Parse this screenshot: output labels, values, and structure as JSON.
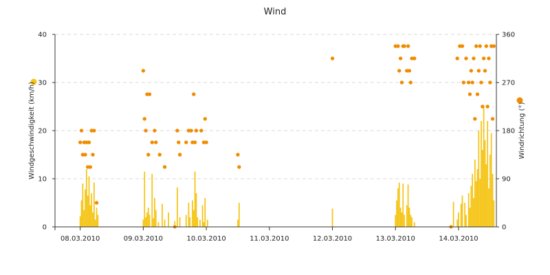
{
  "chart_data": {
    "type": "bar+scatter",
    "title": "Wind",
    "x_tick_labels": [
      "08.03.2010",
      "09.03.2010",
      "10.03.2010",
      "11.03.2010",
      "12.03.2010",
      "13.03.2010",
      "14.03.2010"
    ],
    "x_range_days": [
      7.6,
      14.6
    ],
    "y_left": {
      "label": "Windgeschwindigkeit (km/h)",
      "min": 0,
      "max": 40,
      "ticks": [
        0,
        10,
        20,
        30,
        40
      ]
    },
    "y_right": {
      "label": "Windrichtung (°)",
      "min": 0,
      "max": 360,
      "ticks": [
        0,
        90,
        180,
        270,
        360
      ]
    },
    "series": [
      {
        "name": "Windgeschwindigkeit",
        "kind": "bar",
        "axis": "left",
        "color": "#f5c518",
        "points": [
          [
            8.0,
            2.2
          ],
          [
            8.02,
            5.5
          ],
          [
            8.04,
            9.0
          ],
          [
            8.06,
            3.5
          ],
          [
            8.08,
            7.8
          ],
          [
            8.1,
            12.0
          ],
          [
            8.12,
            6.5
          ],
          [
            8.14,
            10.5
          ],
          [
            8.16,
            4.5
          ],
          [
            8.18,
            7.0
          ],
          [
            8.2,
            3.0
          ],
          [
            8.22,
            9.2
          ],
          [
            8.24,
            1.5
          ],
          [
            8.26,
            4.0
          ],
          [
            8.28,
            2.5
          ],
          [
            9.0,
            1.5
          ],
          [
            9.02,
            11.5
          ],
          [
            9.04,
            2.0
          ],
          [
            9.06,
            3.0
          ],
          [
            9.08,
            4.0
          ],
          [
            9.1,
            2.5
          ],
          [
            9.14,
            11.0
          ],
          [
            9.16,
            1.8
          ],
          [
            9.18,
            6.0
          ],
          [
            9.2,
            3.5
          ],
          [
            9.24,
            1.0
          ],
          [
            9.3,
            4.8
          ],
          [
            9.34,
            1.5
          ],
          [
            9.4,
            3.0
          ],
          [
            9.5,
            1.2
          ],
          [
            9.54,
            8.2
          ],
          [
            9.58,
            2.0
          ],
          [
            9.68,
            2.5
          ],
          [
            9.72,
            5.0
          ],
          [
            9.74,
            2.0
          ],
          [
            9.78,
            5.5
          ],
          [
            9.8,
            3.5
          ],
          [
            9.82,
            11.5
          ],
          [
            9.84,
            7.0
          ],
          [
            9.86,
            2.0
          ],
          [
            9.9,
            1.5
          ],
          [
            9.94,
            4.5
          ],
          [
            9.96,
            1.0
          ],
          [
            9.98,
            6.0
          ],
          [
            10.02,
            1.5
          ],
          [
            10.5,
            1.5
          ],
          [
            10.52,
            5.0
          ],
          [
            12.0,
            3.8
          ],
          [
            13.0,
            2.5
          ],
          [
            13.02,
            5.5
          ],
          [
            13.04,
            8.0
          ],
          [
            13.06,
            9.2
          ],
          [
            13.08,
            4.0
          ],
          [
            13.1,
            3.0
          ],
          [
            13.12,
            9.0
          ],
          [
            13.14,
            2.5
          ],
          [
            13.18,
            4.5
          ],
          [
            13.2,
            8.8
          ],
          [
            13.22,
            4.0
          ],
          [
            13.24,
            2.5
          ],
          [
            13.26,
            2.0
          ],
          [
            13.3,
            1.0
          ],
          [
            13.92,
            5.2
          ],
          [
            13.98,
            1.5
          ],
          [
            14.0,
            3.0
          ],
          [
            14.04,
            4.8
          ],
          [
            14.06,
            6.5
          ],
          [
            14.1,
            5.0
          ],
          [
            14.12,
            2.5
          ],
          [
            14.16,
            7.0
          ],
          [
            14.18,
            4.0
          ],
          [
            14.2,
            8.5
          ],
          [
            14.22,
            11.0
          ],
          [
            14.24,
            6.0
          ],
          [
            14.26,
            14.0
          ],
          [
            14.28,
            9.5
          ],
          [
            14.3,
            12.0
          ],
          [
            14.32,
            20.0
          ],
          [
            14.34,
            10.0
          ],
          [
            14.36,
            22.0
          ],
          [
            14.38,
            16.0
          ],
          [
            14.4,
            25.0
          ],
          [
            14.42,
            18.0
          ],
          [
            14.44,
            13.0
          ],
          [
            14.46,
            22.0
          ],
          [
            14.48,
            8.0
          ],
          [
            14.5,
            15.0
          ],
          [
            14.52,
            19.5
          ],
          [
            14.54,
            11.0
          ],
          [
            14.56,
            5.5
          ]
        ]
      },
      {
        "name": "Windrichtung",
        "kind": "scatter",
        "axis": "right",
        "color": "#f08c00",
        "points": [
          [
            8.0,
            158
          ],
          [
            8.02,
            180
          ],
          [
            8.04,
            135
          ],
          [
            8.06,
            158
          ],
          [
            8.08,
            135
          ],
          [
            8.1,
            158
          ],
          [
            8.12,
            112
          ],
          [
            8.14,
            158
          ],
          [
            8.16,
            112
          ],
          [
            8.18,
            180
          ],
          [
            8.2,
            135
          ],
          [
            8.22,
            180
          ],
          [
            8.26,
            45
          ],
          [
            9.0,
            292
          ],
          [
            9.02,
            202
          ],
          [
            9.04,
            180
          ],
          [
            9.06,
            248
          ],
          [
            9.08,
            135
          ],
          [
            9.1,
            248
          ],
          [
            9.14,
            158
          ],
          [
            9.18,
            180
          ],
          [
            9.2,
            158
          ],
          [
            9.26,
            135
          ],
          [
            9.34,
            112
          ],
          [
            9.54,
            180
          ],
          [
            9.56,
            158
          ],
          [
            9.58,
            135
          ],
          [
            9.68,
            158
          ],
          [
            9.72,
            180
          ],
          [
            9.76,
            180
          ],
          [
            9.78,
            158
          ],
          [
            9.8,
            248
          ],
          [
            9.82,
            158
          ],
          [
            9.84,
            180
          ],
          [
            9.92,
            180
          ],
          [
            9.96,
            158
          ],
          [
            9.98,
            202
          ],
          [
            10.0,
            158
          ],
          [
            10.5,
            135
          ],
          [
            10.52,
            112
          ],
          [
            12.0,
            315
          ],
          [
            13.0,
            338
          ],
          [
            13.04,
            338
          ],
          [
            13.06,
            292
          ],
          [
            13.08,
            315
          ],
          [
            13.1,
            270
          ],
          [
            13.12,
            338
          ],
          [
            13.14,
            338
          ],
          [
            13.18,
            292
          ],
          [
            13.2,
            338
          ],
          [
            13.22,
            292
          ],
          [
            13.24,
            270
          ],
          [
            13.26,
            315
          ],
          [
            13.3,
            315
          ],
          [
            13.98,
            315
          ],
          [
            14.02,
            338
          ],
          [
            14.06,
            338
          ],
          [
            14.08,
            270
          ],
          [
            14.12,
            315
          ],
          [
            14.16,
            270
          ],
          [
            14.18,
            248
          ],
          [
            14.2,
            292
          ],
          [
            14.22,
            270
          ],
          [
            14.24,
            315
          ],
          [
            14.26,
            202
          ],
          [
            14.28,
            338
          ],
          [
            14.3,
            248
          ],
          [
            14.32,
            292
          ],
          [
            14.34,
            338
          ],
          [
            14.36,
            270
          ],
          [
            14.38,
            225
          ],
          [
            14.4,
            315
          ],
          [
            14.42,
            292
          ],
          [
            14.44,
            338
          ],
          [
            14.46,
            225
          ],
          [
            14.48,
            315
          ],
          [
            14.5,
            270
          ],
          [
            14.52,
            338
          ],
          [
            14.54,
            202
          ],
          [
            14.56,
            338
          ]
        ]
      }
    ]
  }
}
